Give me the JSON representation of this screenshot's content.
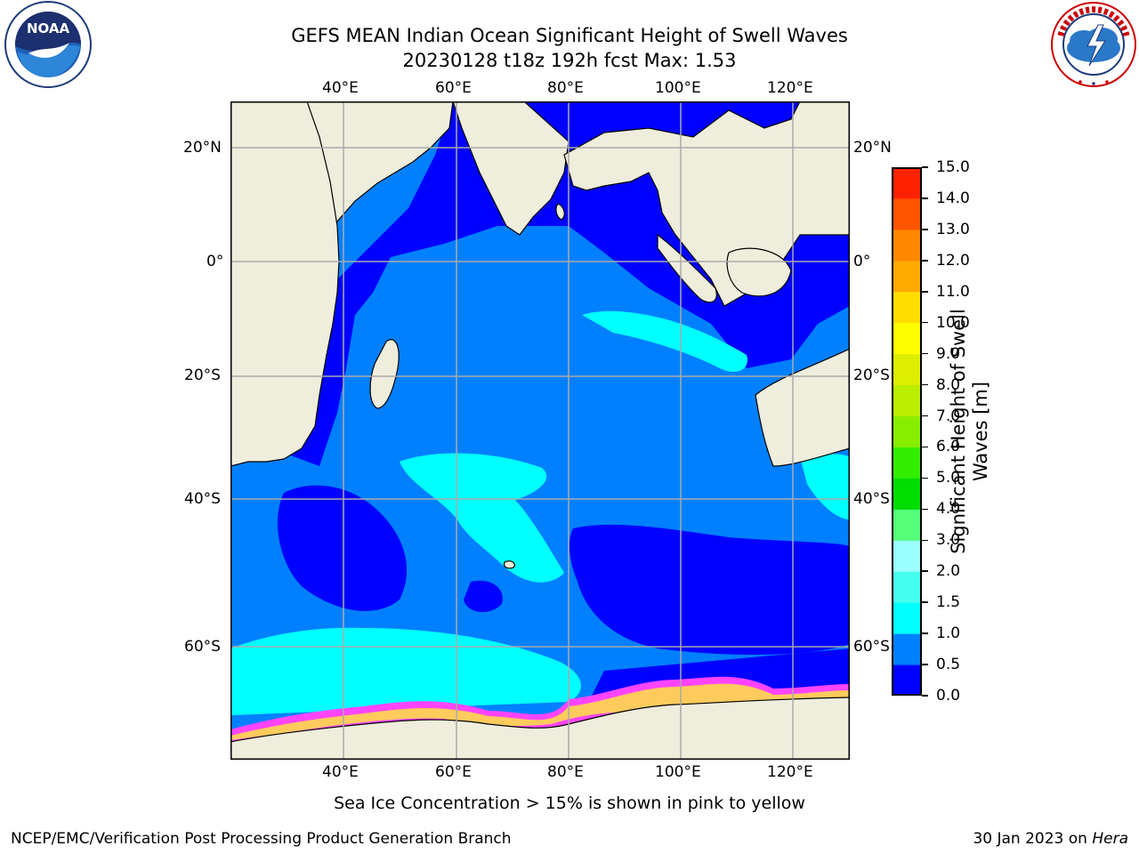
{
  "header": {
    "title_line1": "GEFS MEAN Indian Ocean Significant Height of Swell Waves",
    "title_line2": "20230128 t18z 192h fcst   Max: 1.53"
  },
  "logos": {
    "left": {
      "text": "NOAA",
      "ring_text": "NATIONAL OCEANIC AND ATMOSPHERIC ADMINISTRATION · U.S. DEPARTMENT OF COMMERCE"
    },
    "right": {
      "ring_text": "NATIONAL WEATHER SERVICE"
    }
  },
  "map": {
    "lon_labels": [
      "40°E",
      "60°E",
      "80°E",
      "100°E",
      "120°E"
    ],
    "lat_labels": [
      "20°N",
      "0°",
      "20°S",
      "40°S",
      "60°S"
    ],
    "colors": {
      "land": "#efeedd",
      "ocean_low": "#0000ff",
      "ocean_mid": "#0080ff",
      "ocean_high": "#00ffff",
      "ice_pink": "#ff44ff",
      "ice_yellow": "#ffee33",
      "grid": "#aaaaaa"
    }
  },
  "colorbar": {
    "label_line1": "Significant Height of Swell",
    "label_line2": "Waves [m]",
    "ticks": [
      "0.0",
      "0.5",
      "1.0",
      "1.5",
      "2.0",
      "3.0",
      "4.0",
      "5.0",
      "6.0",
      "7.0",
      "8.0",
      "9.0",
      "10.0",
      "11.0",
      "12.0",
      "13.0",
      "14.0",
      "15.0"
    ],
    "colors": [
      "#0000ff",
      "#0080ff",
      "#00ffff",
      "#44ffee",
      "#99ffff",
      "#55ff77",
      "#00dd00",
      "#33ee00",
      "#88ee00",
      "#bbee00",
      "#ddee00",
      "#ffff00",
      "#ffdd00",
      "#ffaa00",
      "#ff8800",
      "#ff5500",
      "#ff2200"
    ]
  },
  "footer": {
    "note": "Sea Ice Concentration > 15% is shown in pink to yellow",
    "credit_left": "NCEP/EMC/Verification Post Processing Product Generation Branch",
    "credit_date": "30 Jan 2023 on ",
    "credit_host": "Hera"
  }
}
